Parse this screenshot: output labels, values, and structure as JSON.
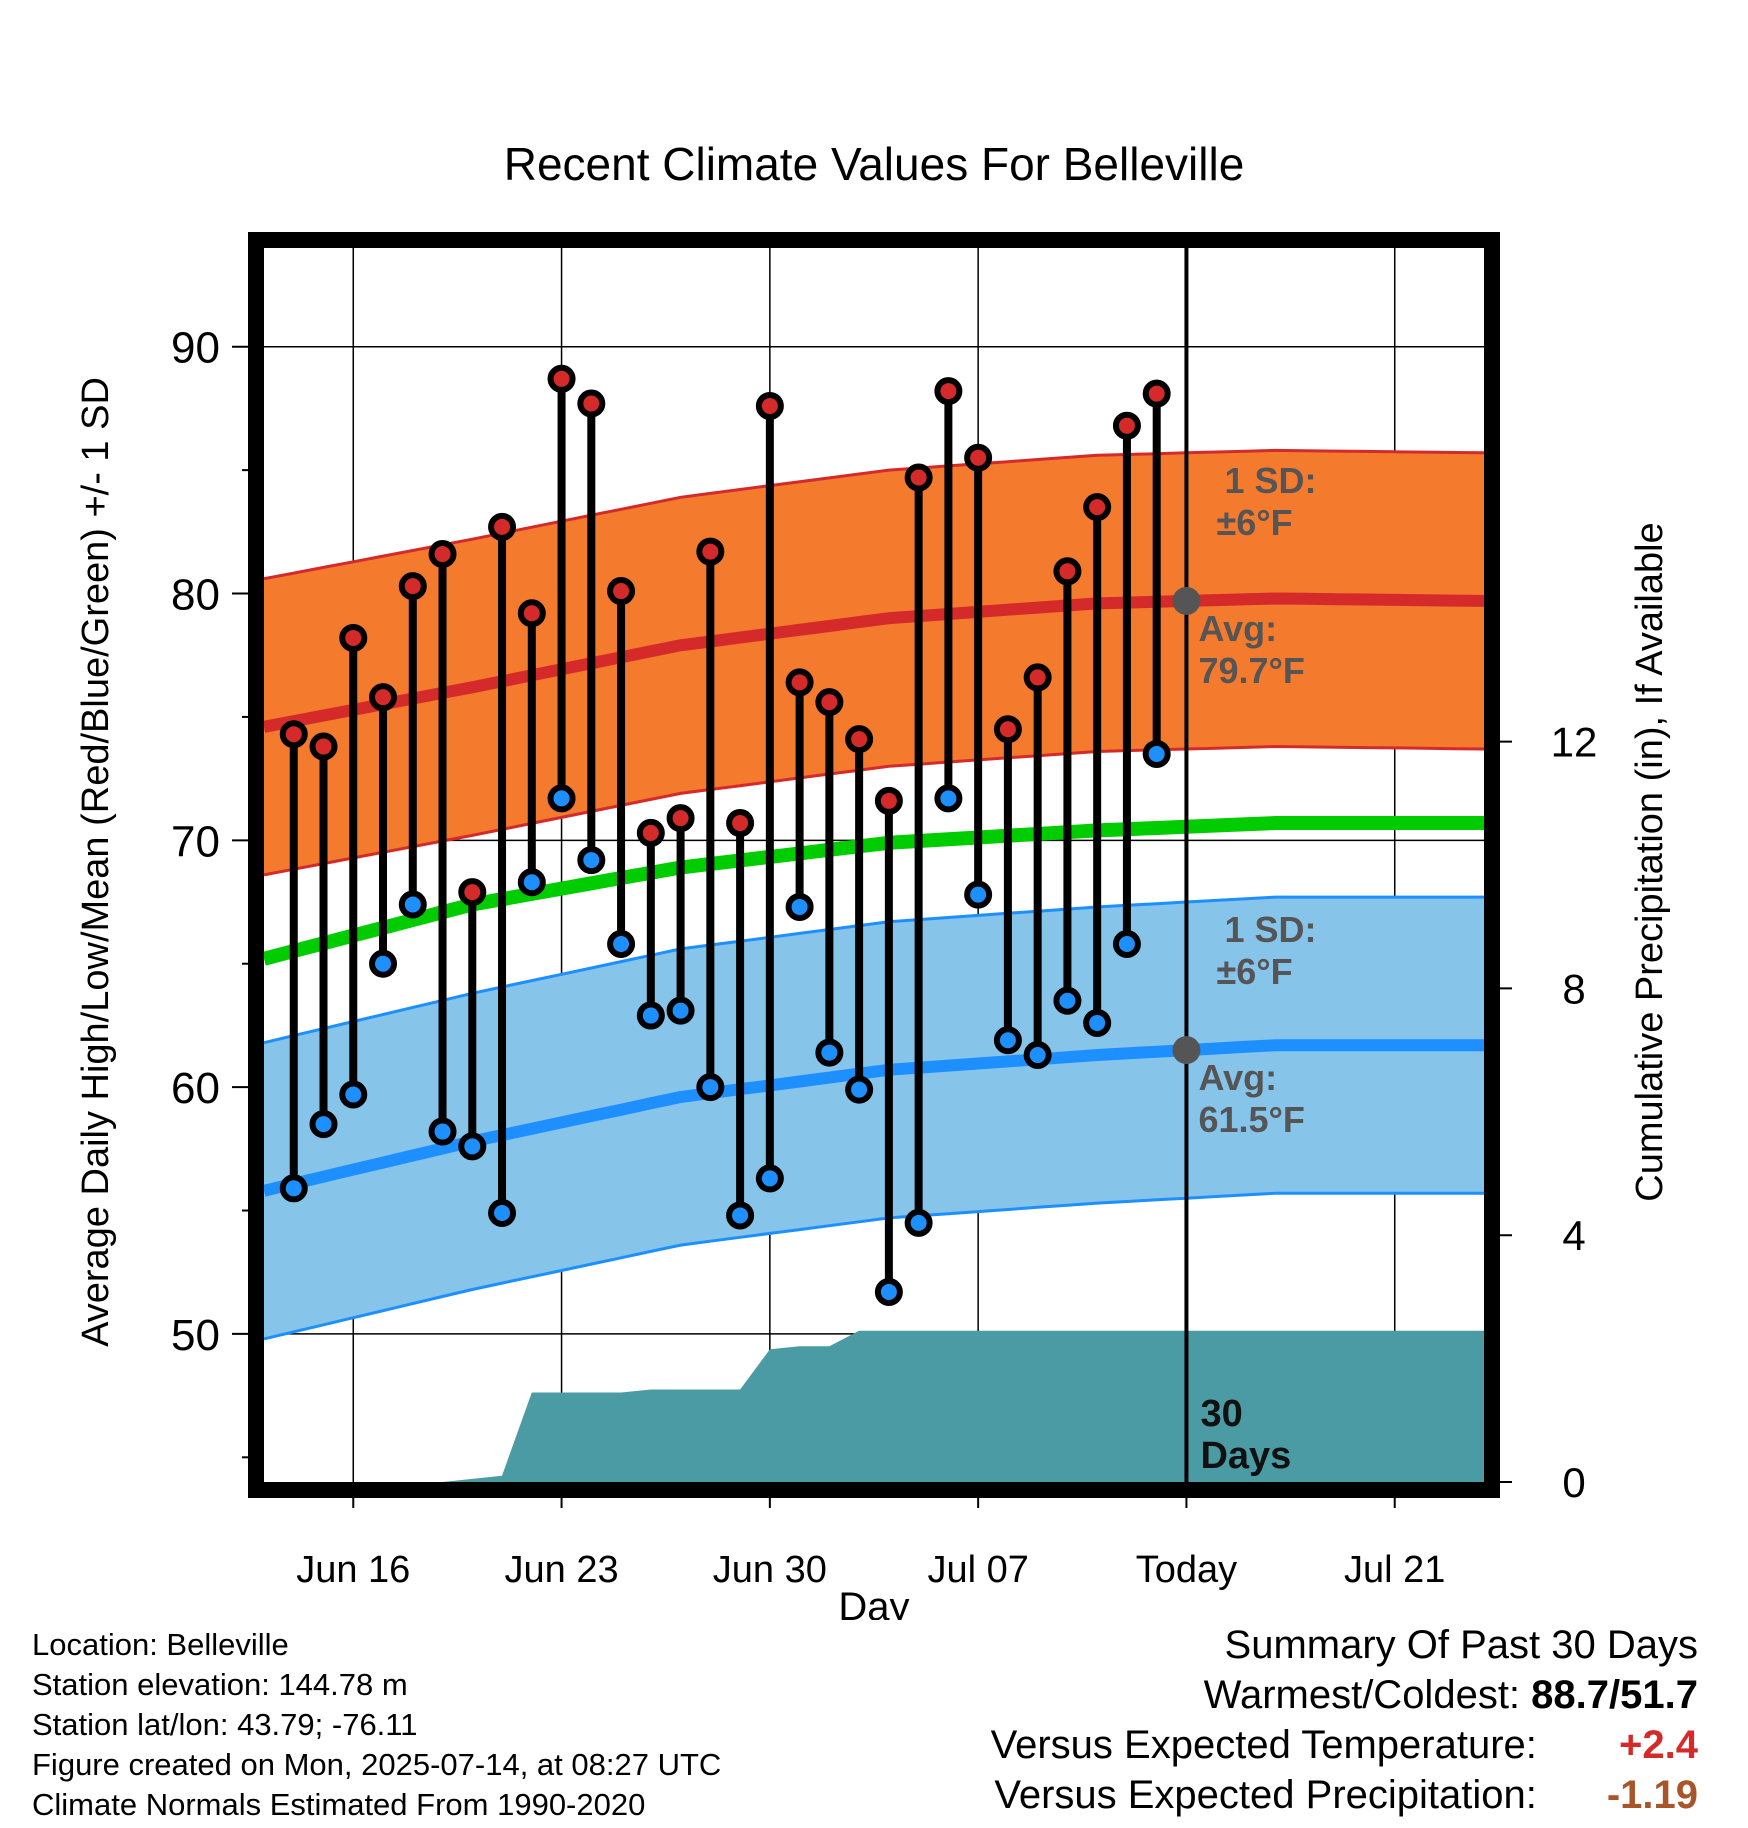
{
  "chart_data": {
    "type": "line",
    "title": "Recent Climate Values For Belleville",
    "xlabel": "Day",
    "ylabel": "Average Daily High/Low/Mean (Red/Blue/Green) +/- 1 SD",
    "y2label": "Cumulative Precipitation (in), If Available",
    "ylim": [
      44,
      94
    ],
    "y2lim": [
      0,
      20
    ],
    "yticks": [
      50,
      60,
      70,
      80,
      90
    ],
    "y2ticks": [
      0,
      4,
      8,
      12
    ],
    "xlim": [
      "2025-06-13",
      "2025-07-24"
    ],
    "xticks": [
      {
        "date": "2025-06-16",
        "label": "Jun 16"
      },
      {
        "date": "2025-06-23",
        "label": "Jun 23"
      },
      {
        "date": "2025-06-30",
        "label": "Jun 30"
      },
      {
        "date": "2025-07-07",
        "label": "Jul 07"
      },
      {
        "date": "2025-07-14",
        "label": "Today"
      },
      {
        "date": "2025-07-21",
        "label": "Jul 21"
      }
    ],
    "today": "2025-07-14",
    "grid": true,
    "colors": {
      "high": "#d42a2a",
      "high_band": "#f47a2e",
      "low": "#1e8fff",
      "low_band": "#86c4ea",
      "mean": "#00cc00",
      "precip": "#4a9ba3",
      "today_marker": "#555555"
    },
    "normal_dates": [
      "2025-06-13",
      "2025-06-20",
      "2025-06-27",
      "2025-07-04",
      "2025-07-11",
      "2025-07-17",
      "2025-07-24"
    ],
    "normal_high": [
      74.6,
      76.2,
      77.9,
      79.0,
      79.6,
      79.8,
      79.7
    ],
    "normal_low": [
      55.8,
      57.8,
      59.6,
      60.7,
      61.3,
      61.7,
      61.7
    ],
    "normal_mean": [
      65.2,
      67.4,
      68.9,
      69.9,
      70.4,
      70.7,
      70.7
    ],
    "sd_high": 6,
    "sd_low": 6,
    "observed": {
      "dates": [
        "2025-06-14",
        "2025-06-15",
        "2025-06-16",
        "2025-06-17",
        "2025-06-18",
        "2025-06-19",
        "2025-06-20",
        "2025-06-21",
        "2025-06-22",
        "2025-06-23",
        "2025-06-24",
        "2025-06-25",
        "2025-06-26",
        "2025-06-27",
        "2025-06-28",
        "2025-06-29",
        "2025-06-30",
        "2025-07-01",
        "2025-07-02",
        "2025-07-03",
        "2025-07-04",
        "2025-07-05",
        "2025-07-06",
        "2025-07-07",
        "2025-07-08",
        "2025-07-09",
        "2025-07-10",
        "2025-07-11",
        "2025-07-12",
        "2025-07-13"
      ],
      "high": [
        74.3,
        73.8,
        78.2,
        75.8,
        80.3,
        81.6,
        67.9,
        82.7,
        79.2,
        88.7,
        87.7,
        80.1,
        70.3,
        70.9,
        81.7,
        70.7,
        87.6,
        76.4,
        75.6,
        74.1,
        71.6,
        84.7,
        88.2,
        85.5,
        74.5,
        76.6,
        80.9,
        83.5,
        86.8,
        88.1
      ],
      "low": [
        55.9,
        58.5,
        59.7,
        65.0,
        67.4,
        58.2,
        57.6,
        54.9,
        68.3,
        71.7,
        69.2,
        65.8,
        62.9,
        63.1,
        60.0,
        54.8,
        56.3,
        67.3,
        61.4,
        59.9,
        51.7,
        54.5,
        71.7,
        67.8,
        61.9,
        61.3,
        63.5,
        62.6,
        65.8,
        73.5
      ]
    },
    "precip": {
      "dates": [
        "2025-06-17",
        "2025-06-18",
        "2025-06-19",
        "2025-06-20",
        "2025-06-21",
        "2025-06-22",
        "2025-06-23",
        "2025-06-24",
        "2025-06-25",
        "2025-06-26",
        "2025-06-27",
        "2025-06-28",
        "2025-06-29",
        "2025-06-30",
        "2025-07-01",
        "2025-07-02",
        "2025-07-03",
        "2025-07-04",
        "2025-07-10",
        "2025-07-14",
        "2025-07-24"
      ],
      "values": [
        0.0,
        0.0,
        0.0,
        0.05,
        0.1,
        1.45,
        1.45,
        1.45,
        1.45,
        1.5,
        1.5,
        1.5,
        1.5,
        2.15,
        2.2,
        2.2,
        2.45,
        2.45,
        2.45,
        2.45,
        2.45
      ]
    },
    "annotations": {
      "high_sd_line1": "1 SD:",
      "high_sd_line2": "±6°F",
      "high_avg_line1": "Avg:",
      "high_avg_line2": "79.7°F",
      "low_sd_line1": "1 SD:",
      "low_sd_line2": "±6°F",
      "low_avg_line1": "Avg:",
      "low_avg_line2": "61.5°F",
      "days_line1": "30",
      "days_line2": "Days"
    }
  },
  "footer": {
    "location": "Location: Belleville",
    "elevation": "Station elevation: 144.78 m",
    "latlon": "Station lat/lon: 43.79; -76.11",
    "created": "Figure created on Mon, 2025-07-14, at 08:27 UTC",
    "normals": "Climate Normals Estimated From 1990-2020"
  },
  "summary": {
    "title": "Summary Of Past 30 Days",
    "warmest_label": "Warmest/Coldest:",
    "warmest_value": "88.7/51.7",
    "temp_label": "Versus Expected Temperature:",
    "temp_value": "+2.4",
    "precip_label": "Versus Expected Precipitation:",
    "precip_value": "-1.19"
  }
}
